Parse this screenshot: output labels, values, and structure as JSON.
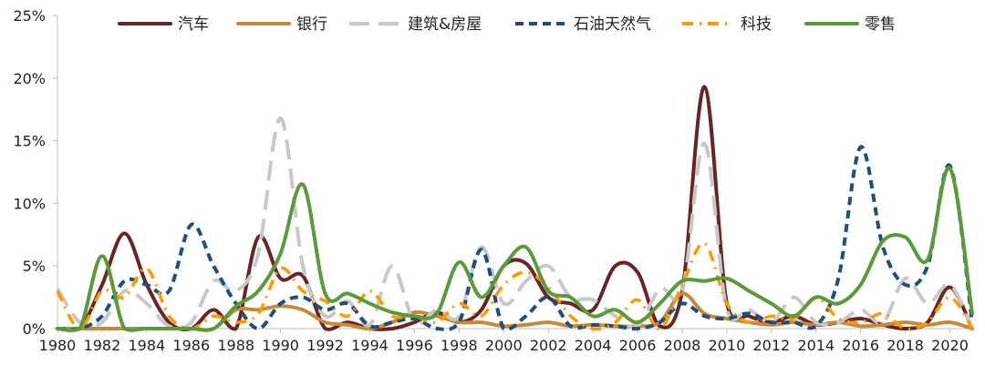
{
  "chart_data": {
    "type": "line",
    "title": "",
    "xlabel": "",
    "ylabel": "",
    "ylim": [
      0,
      25
    ],
    "xlim": [
      1980,
      2021
    ],
    "y_ticks": [
      "0%",
      "5%",
      "10%",
      "15%",
      "20%",
      "25%"
    ],
    "x_ticks": [
      "1980",
      "1982",
      "1984",
      "1986",
      "1988",
      "1990",
      "1992",
      "1994",
      "1996",
      "1998",
      "2000",
      "2002",
      "2004",
      "2006",
      "2008",
      "2010",
      "2012",
      "2014",
      "2016",
      "2018",
      "2020"
    ],
    "legend_position": "top",
    "grid": false,
    "x": [
      1980,
      1981,
      1982,
      1983,
      1984,
      1985,
      1986,
      1987,
      1988,
      1989,
      1990,
      1991,
      1992,
      1993,
      1994,
      1995,
      1996,
      1997,
      1998,
      1999,
      2000,
      2001,
      2002,
      2003,
      2004,
      2005,
      2006,
      2007,
      2008,
      2009,
      2010,
      2011,
      2012,
      2013,
      2014,
      2015,
      2016,
      2017,
      2018,
      2019,
      2020,
      2021
    ],
    "series": [
      {
        "name": "汽车",
        "color": "#6B2424",
        "dash": "solid",
        "values": [
          0,
          0,
          3.5,
          7.6,
          3.5,
          0.5,
          0,
          1.5,
          0,
          7.3,
          4.0,
          4.2,
          0,
          0.5,
          0,
          0,
          0.5,
          1.3,
          0.5,
          1.5,
          5.0,
          5.2,
          2.5,
          2.0,
          1.5,
          5.0,
          4.5,
          0.2,
          3.0,
          19.3,
          2.0,
          1.0,
          0.5,
          1.0,
          0.3,
          0.5,
          0.8,
          0.3,
          0,
          0.5,
          3.3,
          0
        ]
      },
      {
        "name": "银行",
        "color": "#C58A3C",
        "dash": "solid",
        "values": [
          0,
          0,
          0,
          0,
          0,
          0,
          0,
          0,
          1.5,
          1.5,
          1.8,
          1.5,
          0.5,
          0.3,
          0,
          0.5,
          1.3,
          1.0,
          0.5,
          0.5,
          0.2,
          0.3,
          0.5,
          0.2,
          0.3,
          0.2,
          0.2,
          0.5,
          2.8,
          1.2,
          0.8,
          0.5,
          0.3,
          0.5,
          0.3,
          0.5,
          0.2,
          0.3,
          0.5,
          0.3,
          0.5,
          0
        ]
      },
      {
        "name": "建筑&房屋",
        "color": "#C8C8C8",
        "dash": "long",
        "values": [
          3.2,
          0.5,
          0.5,
          3.0,
          2.0,
          0.2,
          0.5,
          3.8,
          3.0,
          6.0,
          16.8,
          5.0,
          1.0,
          2.2,
          0.3,
          5.0,
          0.5,
          1.5,
          1.0,
          6.5,
          2.0,
          3.8,
          5.0,
          2.5,
          2.3,
          1.0,
          0.2,
          3.2,
          3.0,
          14.8,
          1.5,
          1.5,
          0.5,
          2.5,
          0.5,
          0.5,
          1.5,
          0.5,
          4.0,
          2.0,
          3.5,
          0
        ]
      },
      {
        "name": "石油天然气",
        "color": "#1F4E79",
        "dash": "short",
        "values": [
          0,
          0,
          1.0,
          3.8,
          3.5,
          3.0,
          8.3,
          5.0,
          2.0,
          0,
          2.0,
          2.5,
          1.5,
          2.0,
          0.2,
          0.5,
          0.8,
          0,
          0.5,
          6.3,
          0,
          1.0,
          2.5,
          0.2,
          0.3,
          0.2,
          0,
          0.5,
          2.0,
          1.0,
          0.8,
          1.2,
          0.5,
          0.5,
          0.2,
          4.0,
          14.5,
          6.5,
          3.5,
          5.0,
          13.0,
          0.5
        ]
      },
      {
        "name": "科技",
        "color": "#FF9900",
        "dash": "dashdot",
        "values": [
          3.0,
          0,
          3.0,
          2.5,
          4.8,
          1.0,
          0,
          1.0,
          0.5,
          1.2,
          4.8,
          3.0,
          2.2,
          1.0,
          3.0,
          1.0,
          1.0,
          0.5,
          2.0,
          1.0,
          3.5,
          4.5,
          3.3,
          1.0,
          0,
          0.5,
          2.3,
          0,
          3.5,
          6.8,
          2.0,
          0.5,
          1.0,
          0.8,
          2.5,
          0.8,
          0.5,
          1.2,
          0,
          0.5,
          2.5,
          0
        ]
      },
      {
        "name": "零售",
        "color": "#5B9A3A",
        "dash": "solid",
        "values": [
          0,
          0,
          5.8,
          0,
          0,
          0,
          0,
          0,
          1.8,
          3.0,
          6.0,
          11.5,
          2.8,
          2.8,
          2.0,
          1.3,
          1.0,
          1.2,
          5.3,
          2.5,
          5.0,
          6.5,
          3.0,
          2.5,
          1.0,
          1.5,
          0.5,
          2.0,
          3.8,
          3.8,
          4.0,
          3.0,
          2.0,
          1.0,
          2.5,
          2.0,
          3.5,
          7.0,
          7.3,
          5.5,
          12.8,
          1.2
        ]
      }
    ]
  }
}
